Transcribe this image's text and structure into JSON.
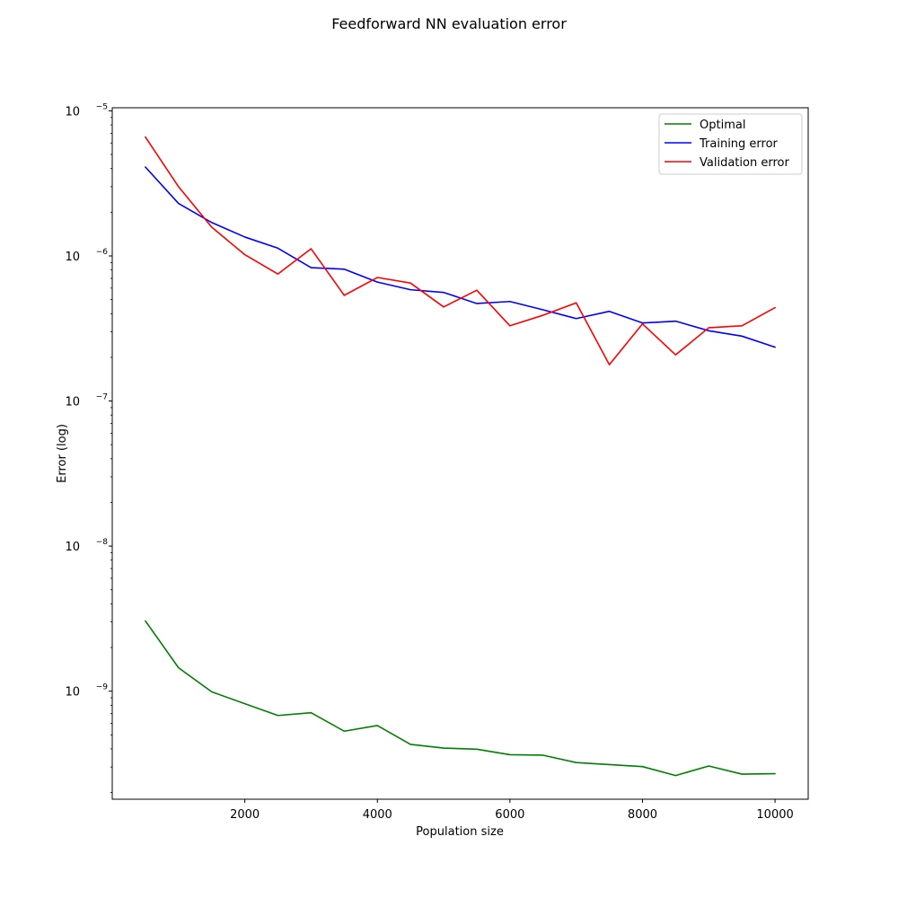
{
  "chart_data": {
    "type": "line",
    "title": "Feedforward NN evaluation error",
    "xlabel": "Population size",
    "ylabel": "Error (log)",
    "yscale": "log",
    "xlim": [
      0,
      10500
    ],
    "ylim": [
      1.8e-10,
      1.05e-05
    ],
    "grid": false,
    "legend_position": "top-right",
    "x_ticks": [
      2000,
      4000,
      6000,
      8000,
      10000
    ],
    "x_tick_labels": [
      "2000",
      "4000",
      "6000",
      "8000",
      "10000"
    ],
    "y_ticks": [
      {
        "value": 1e-09,
        "base": "10",
        "exp": "−9"
      },
      {
        "value": 1e-08,
        "base": "10",
        "exp": "−8"
      },
      {
        "value": 1e-07,
        "base": "10",
        "exp": "−7"
      },
      {
        "value": 1e-06,
        "base": "10",
        "exp": "−6"
      },
      {
        "value": 1e-05,
        "base": "10",
        "exp": "−5"
      }
    ],
    "x": [
      500,
      1000,
      1500,
      2000,
      2500,
      3000,
      3500,
      4000,
      4500,
      5000,
      5500,
      6000,
      6500,
      7000,
      7500,
      8000,
      8500,
      9000,
      9500,
      10000
    ],
    "series": [
      {
        "name": "Optimal",
        "color": "#008000",
        "values": [
          3.05e-09,
          1.45e-09,
          9.9e-10,
          8.2e-10,
          6.8e-10,
          7.1e-10,
          5.3e-10,
          5.8e-10,
          4.3e-10,
          4.05e-10,
          3.98e-10,
          3.65e-10,
          3.62e-10,
          3.22e-10,
          3.12e-10,
          3.02e-10,
          2.62e-10,
          3.05e-10,
          2.68e-10,
          2.7e-10
        ]
      },
      {
        "name": "Training error",
        "color": "#0000ff",
        "values": [
          4.1e-06,
          2.3e-06,
          1.7e-06,
          1.35e-06,
          1.13e-06,
          8.3e-07,
          8.1e-07,
          6.6e-07,
          5.85e-07,
          5.6e-07,
          4.7e-07,
          4.85e-07,
          4.25e-07,
          3.7e-07,
          4.15e-07,
          3.45e-07,
          3.55e-07,
          3.05e-07,
          2.8e-07,
          2.35e-07
        ]
      },
      {
        "name": "Validation error",
        "color": "#ff0000",
        "values": [
          6.6e-06,
          3e-06,
          1.58e-06,
          1.02e-06,
          7.5e-07,
          1.12e-06,
          5.35e-07,
          7.1e-07,
          6.5e-07,
          4.45e-07,
          5.8e-07,
          3.3e-07,
          3.9e-07,
          4.75e-07,
          1.78e-07,
          3.4e-07,
          2.08e-07,
          3.2e-07,
          3.3e-07,
          4.4e-07
        ]
      }
    ]
  }
}
